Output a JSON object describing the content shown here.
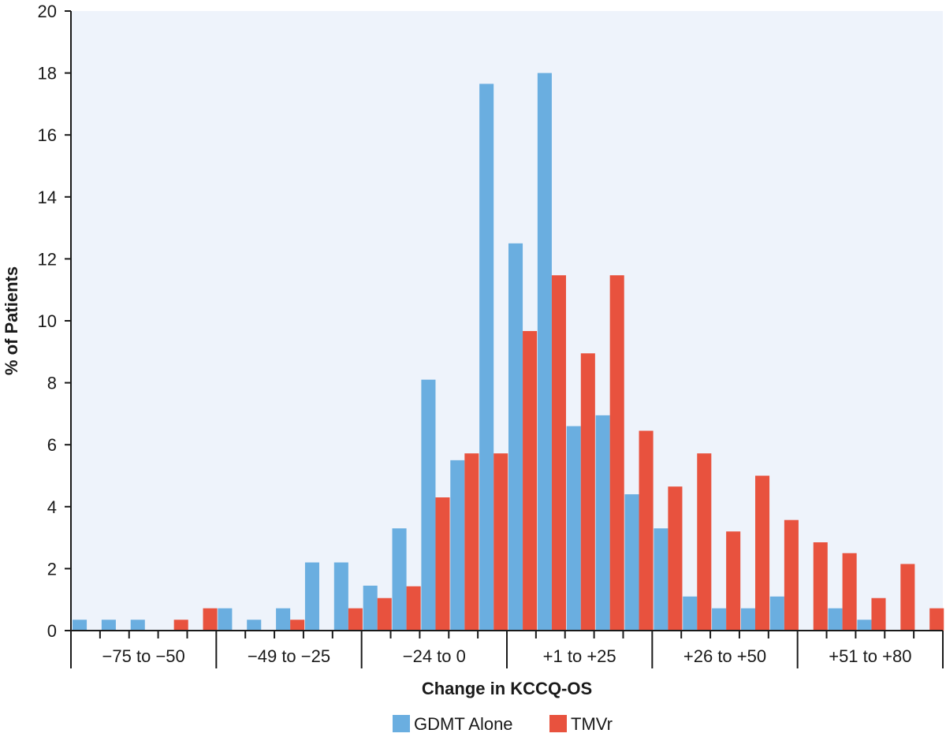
{
  "chart_data": {
    "type": "bar",
    "xlabel": "Change in KCCQ-OS",
    "ylabel": "% of Patients",
    "ylim": [
      0,
      20
    ],
    "yticks": [
      0,
      2,
      4,
      6,
      8,
      10,
      12,
      14,
      16,
      18,
      20
    ],
    "grid": false,
    "legend_position": "bottom",
    "groups": [
      "−75 to −50",
      "−49 to −25",
      "−24 to 0",
      "+1 to +25",
      "+26 to +50",
      "+51 to +80"
    ],
    "bins_per_group": 5,
    "series": [
      {
        "name": "GDMT Alone",
        "color": "#6aaee0",
        "values": [
          0.35,
          0.35,
          0.35,
          0,
          0,
          0.72,
          0.35,
          0.72,
          2.2,
          2.2,
          1.45,
          3.3,
          8.1,
          5.5,
          17.65,
          12.5,
          18.0,
          6.6,
          6.95,
          4.4,
          3.3,
          1.1,
          0.72,
          0.72,
          1.1,
          0,
          0.72,
          0.35,
          0,
          0
        ]
      },
      {
        "name": "TMVr",
        "color": "#e8523e",
        "values": [
          0,
          0,
          0,
          0.35,
          0.72,
          0,
          0,
          0.35,
          0,
          0.72,
          1.05,
          1.43,
          4.3,
          5.72,
          5.72,
          9.67,
          11.47,
          8.95,
          11.47,
          6.45,
          4.65,
          5.72,
          3.2,
          5.0,
          3.57,
          2.85,
          2.5,
          1.05,
          2.15,
          0.72
        ]
      }
    ]
  }
}
